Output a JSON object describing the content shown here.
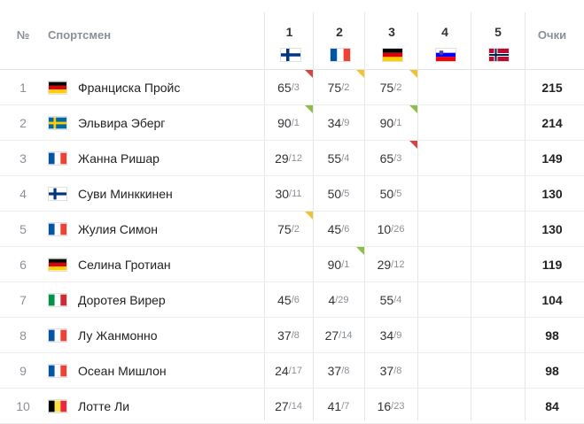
{
  "headers": {
    "num": "№",
    "athlete": "Спортсмен",
    "points": "Очки"
  },
  "stages": [
    {
      "num": "1",
      "flag": "finland"
    },
    {
      "num": "2",
      "flag": "france"
    },
    {
      "num": "3",
      "flag": "germany"
    },
    {
      "num": "4",
      "flag": "slovenia"
    },
    {
      "num": "5",
      "flag": "norway"
    }
  ],
  "colors": {
    "marker_red": "#d64545",
    "marker_yellow": "#f2c230",
    "marker_green": "#8bbf45"
  },
  "rows": [
    {
      "rank": "1",
      "flag": "germany",
      "name": "Франциска Пройс",
      "points": "215",
      "results": [
        {
          "pts": "65",
          "place": "/3",
          "marker": "red"
        },
        {
          "pts": "75",
          "place": "/2",
          "marker": "yellow"
        },
        {
          "pts": "75",
          "place": "/2",
          "marker": "yellow"
        },
        {},
        {}
      ]
    },
    {
      "rank": "2",
      "flag": "sweden",
      "name": "Эльвира Эберг",
      "points": "214",
      "results": [
        {
          "pts": "90",
          "place": "/1",
          "marker": "green"
        },
        {
          "pts": "34",
          "place": "/9"
        },
        {
          "pts": "90",
          "place": "/1",
          "marker": "green"
        },
        {},
        {}
      ]
    },
    {
      "rank": "3",
      "flag": "france",
      "name": "Жанна Ришар",
      "points": "149",
      "results": [
        {
          "pts": "29",
          "place": "/12"
        },
        {
          "pts": "55",
          "place": "/4"
        },
        {
          "pts": "65",
          "place": "/3",
          "marker": "red"
        },
        {},
        {}
      ]
    },
    {
      "rank": "4",
      "flag": "finland",
      "name": "Суви Минккинен",
      "points": "130",
      "results": [
        {
          "pts": "30",
          "place": "/11"
        },
        {
          "pts": "50",
          "place": "/5"
        },
        {
          "pts": "50",
          "place": "/5"
        },
        {},
        {}
      ]
    },
    {
      "rank": "5",
      "flag": "france",
      "name": "Жулия Симон",
      "points": "130",
      "results": [
        {
          "pts": "75",
          "place": "/2",
          "marker": "yellow"
        },
        {
          "pts": "45",
          "place": "/6"
        },
        {
          "pts": "10",
          "place": "/26"
        },
        {},
        {}
      ]
    },
    {
      "rank": "6",
      "flag": "germany",
      "name": "Селина Гротиан",
      "points": "119",
      "results": [
        {},
        {
          "pts": "90",
          "place": "/1",
          "marker": "green"
        },
        {
          "pts": "29",
          "place": "/12"
        },
        {},
        {}
      ]
    },
    {
      "rank": "7",
      "flag": "italy",
      "name": "Доротея Вирер",
      "points": "104",
      "results": [
        {
          "pts": "45",
          "place": "/6"
        },
        {
          "pts": "4",
          "place": "/29"
        },
        {
          "pts": "55",
          "place": "/4"
        },
        {},
        {}
      ]
    },
    {
      "rank": "8",
      "flag": "france",
      "name": "Лу Жанмонно",
      "points": "98",
      "results": [
        {
          "pts": "37",
          "place": "/8"
        },
        {
          "pts": "27",
          "place": "/14"
        },
        {
          "pts": "34",
          "place": "/9"
        },
        {},
        {}
      ]
    },
    {
      "rank": "9",
      "flag": "france",
      "name": "Осеан Мишлон",
      "points": "98",
      "results": [
        {
          "pts": "24",
          "place": "/17"
        },
        {
          "pts": "37",
          "place": "/8"
        },
        {
          "pts": "37",
          "place": "/8"
        },
        {},
        {}
      ]
    },
    {
      "rank": "10",
      "flag": "belgium",
      "name": "Лотте Ли",
      "points": "84",
      "results": [
        {
          "pts": "27",
          "place": "/14"
        },
        {
          "pts": "41",
          "place": "/7"
        },
        {
          "pts": "16",
          "place": "/23"
        },
        {},
        {}
      ]
    }
  ]
}
